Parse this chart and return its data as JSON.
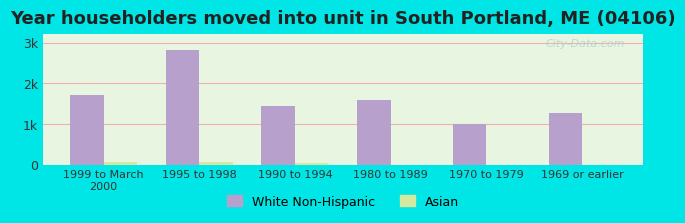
{
  "title": "Year householders moved into unit in South Portland, ME (04106)",
  "categories": [
    "1999 to March\n2000",
    "1995 to 1998",
    "1990 to 1994",
    "1980 to 1989",
    "1970 to 1979",
    "1969 or earlier"
  ],
  "white_values": [
    1700,
    2820,
    1450,
    1580,
    1000,
    1280
  ],
  "asian_values": [
    75,
    55,
    30,
    0,
    0,
    0
  ],
  "white_color": "#b8a0cc",
  "asian_color": "#d4e8a0",
  "background_outer": "#00e5e5",
  "background_inner": "#e8f5e0",
  "grid_color": "#f0b0b0",
  "yticks": [
    0,
    1000,
    2000,
    3000
  ],
  "ytick_labels": [
    "0",
    "1k",
    "2k",
    "3k"
  ],
  "ylim": [
    0,
    3200
  ],
  "bar_width": 0.35,
  "title_fontsize": 13,
  "watermark": "City-Data.com",
  "legend_white": "White Non-Hispanic",
  "legend_asian": "Asian"
}
